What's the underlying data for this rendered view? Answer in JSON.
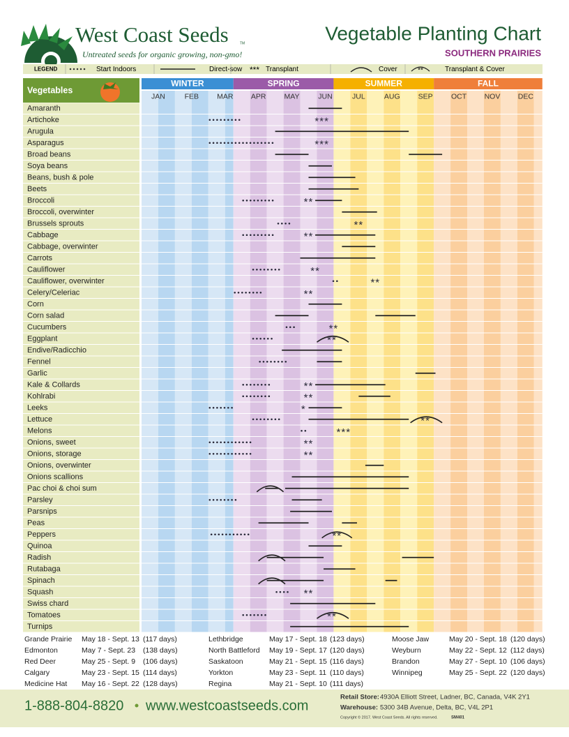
{
  "header": {
    "brand": "West Coast Seeds",
    "tm": "TM",
    "tagline": "Untreated seeds for organic growing, non-gmo!",
    "title": "Vegetable Planting Chart",
    "region": "SOUTHERN PRAIRIES"
  },
  "legend": {
    "title": "LEGEND",
    "items": [
      {
        "label": "Start Indoors"
      },
      {
        "label": "Direct-sow"
      },
      {
        "symbol": "***",
        "label": "Transplant"
      },
      {
        "label": "Cover"
      },
      {
        "symbol": "**",
        "label": "Transplant & Cover"
      }
    ]
  },
  "column_header": "Vegetables",
  "seasons": [
    {
      "name": "WINTER",
      "from": 0,
      "to": 2.75
    },
    {
      "name": "SPRING",
      "from": 2.75,
      "to": 5.75
    },
    {
      "name": "SUMMER",
      "from": 5.75,
      "to": 8.75
    },
    {
      "name": "FALL",
      "from": 8.75,
      "to": 12
    }
  ],
  "months": [
    "JAN",
    "FEB",
    "MAR",
    "APR",
    "MAY",
    "JUN",
    "JUL",
    "AUG",
    "SEP",
    "OCT",
    "NOV",
    "DEC"
  ],
  "rows": [
    {
      "name": "Amaranth",
      "sow": [
        [
          5,
          6
        ]
      ]
    },
    {
      "name": "Artichoke",
      "indoors": [
        [
          2,
          3
        ]
      ],
      "transplant": [
        {
          "at": 5.4,
          "label": "***"
        }
      ]
    },
    {
      "name": "Arugula",
      "sow": [
        [
          4,
          8
        ]
      ]
    },
    {
      "name": "Asparagus",
      "indoors": [
        [
          2,
          4
        ]
      ],
      "transplant": [
        {
          "at": 5.4,
          "label": "***"
        }
      ]
    },
    {
      "name": "Broad beans",
      "sow": [
        [
          4,
          5
        ],
        [
          8,
          9
        ]
      ]
    },
    {
      "name": "Soya beans",
      "sow": [
        [
          5,
          5.7
        ]
      ]
    },
    {
      "name": "Beans, bush & pole",
      "sow": [
        [
          5,
          6.4
        ]
      ]
    },
    {
      "name": "Beets",
      "sow": [
        [
          5,
          6.5
        ]
      ]
    },
    {
      "name": "Broccoli",
      "indoors": [
        [
          3,
          4
        ]
      ],
      "transplant": [
        {
          "at": 5,
          "label": "**"
        }
      ],
      "sow": [
        [
          5.2,
          6
        ]
      ]
    },
    {
      "name": "Broccoli, overwinter",
      "sow": [
        [
          6,
          7.05
        ]
      ]
    },
    {
      "name": "Brussels sprouts",
      "indoors": [
        [
          4.05,
          4.5
        ]
      ],
      "transplant": [
        {
          "at": 6.5,
          "label": "**"
        }
      ]
    },
    {
      "name": "Cabbage",
      "indoors": [
        [
          3,
          4
        ]
      ],
      "transplant": [
        {
          "at": 5,
          "label": "**"
        }
      ],
      "sow": [
        [
          5.2,
          7
        ]
      ]
    },
    {
      "name": "Cabbage, overwinter",
      "sow": [
        [
          6,
          7
        ]
      ]
    },
    {
      "name": "Carrots",
      "sow": [
        [
          4.75,
          7
        ]
      ]
    },
    {
      "name": "Cauliflower",
      "indoors": [
        [
          3.3,
          4.2
        ]
      ],
      "transplant": [
        {
          "at": 5.2,
          "label": "**"
        }
      ]
    },
    {
      "name": "Cauliflower, overwinter",
      "indoors": [
        [
          5.7,
          6
        ]
      ],
      "transplant": [
        {
          "at": 7,
          "label": "**"
        }
      ]
    },
    {
      "name": "Celery/Celeriac",
      "indoors": [
        [
          2.75,
          3.65
        ]
      ],
      "transplant": [
        {
          "at": 5,
          "label": "**"
        }
      ]
    },
    {
      "name": "Corn",
      "sow": [
        [
          5,
          6
        ]
      ]
    },
    {
      "name": "Corn salad",
      "sow": [
        [
          4,
          5
        ],
        [
          7,
          8.2
        ]
      ]
    },
    {
      "name": "Cucumbers",
      "indoors": [
        [
          4.3,
          4.65
        ]
      ],
      "transplant": [
        {
          "at": 5.75,
          "label": "**"
        }
      ]
    },
    {
      "name": "Eggplant",
      "indoors": [
        [
          3.3,
          4
        ]
      ],
      "cover": [
        [
          5.25,
          6.2
        ]
      ],
      "transplant": [
        {
          "at": 5.7,
          "label": "**"
        }
      ]
    },
    {
      "name": "Endive/Radicchio",
      "sow": [
        [
          4.2,
          6
        ]
      ]
    },
    {
      "name": "Fennel",
      "indoors": [
        [
          3.5,
          4.45
        ]
      ],
      "sow": [
        [
          5.25,
          6
        ]
      ]
    },
    {
      "name": "Garlic",
      "sow": [
        [
          8.2,
          8.8
        ]
      ]
    },
    {
      "name": "Kale & Collards",
      "indoors": [
        [
          3,
          3.9
        ]
      ],
      "transplant": [
        {
          "at": 5,
          "label": "**"
        }
      ],
      "sow": [
        [
          5.2,
          7.3
        ]
      ]
    },
    {
      "name": "Kohlrabi",
      "indoors": [
        [
          3,
          3.9
        ]
      ],
      "transplant": [
        {
          "at": 5,
          "label": "**"
        }
      ],
      "sow": [
        [
          6.5,
          7.45
        ]
      ]
    },
    {
      "name": "Leeks",
      "indoors": [
        [
          2,
          2.85
        ]
      ],
      "transplant": [
        {
          "at": 4.85,
          "label": "*"
        }
      ],
      "sow": [
        [
          5,
          6
        ]
      ]
    },
    {
      "name": "Lettuce",
      "indoors": [
        [
          3.3,
          4.2
        ]
      ],
      "sow": [
        [
          5,
          8
        ]
      ],
      "cover": [
        [
          8.05,
          9
        ]
      ],
      "transplant": [
        {
          "at": 8.5,
          "label": "**"
        }
      ]
    },
    {
      "name": "Melons",
      "indoors": [
        [
          4.75,
          4.95
        ]
      ],
      "transplant": [
        {
          "at": 6.05,
          "label": "***"
        }
      ]
    },
    {
      "name": "Onions, sweet",
      "indoors": [
        [
          2,
          3.4
        ]
      ],
      "transplant": [
        {
          "at": 5,
          "label": "**"
        }
      ]
    },
    {
      "name": "Onions, storage",
      "indoors": [
        [
          2,
          3.4
        ]
      ],
      "transplant": [
        {
          "at": 5,
          "label": "**"
        }
      ]
    },
    {
      "name": "Onions, overwinter",
      "sow": [
        [
          6.7,
          7.25
        ]
      ]
    },
    {
      "name": "Onions scallions",
      "sow": [
        [
          4.5,
          8
        ]
      ]
    },
    {
      "name": "Pac choi & choi sum",
      "cover": [
        [
          3.45,
          4.25
        ]
      ],
      "sow": [
        [
          3.7,
          4.1
        ],
        [
          4.3,
          8
        ]
      ]
    },
    {
      "name": "Parsley",
      "indoors": [
        [
          2,
          2.9
        ]
      ],
      "sow": [
        [
          4.5,
          5.4
        ]
      ]
    },
    {
      "name": "Parsnips",
      "sow": [
        [
          4.45,
          5.7
        ]
      ]
    },
    {
      "name": "Peas",
      "sow": [
        [
          3.5,
          5
        ],
        [
          6,
          6.45
        ]
      ]
    },
    {
      "name": "Peppers",
      "indoors": [
        [
          2.05,
          3.3
        ]
      ],
      "cover": [
        [
          5.4,
          6.3
        ]
      ],
      "transplant": [
        {
          "at": 5.85,
          "label": "**"
        }
      ]
    },
    {
      "name": "Quinoa",
      "sow": [
        [
          5,
          6
        ]
      ]
    },
    {
      "name": "Radish",
      "cover": [
        [
          3.5,
          4.3
        ]
      ],
      "sow": [
        [
          3.75,
          5.45
        ],
        [
          7.8,
          8.75
        ]
      ]
    },
    {
      "name": "Rutabaga",
      "sow": [
        [
          5.45,
          6.4
        ]
      ]
    },
    {
      "name": "Spinach",
      "cover": [
        [
          3.5,
          4.3
        ]
      ],
      "sow": [
        [
          3.75,
          5.45
        ],
        [
          7.3,
          7.65
        ]
      ]
    },
    {
      "name": "Squash",
      "indoors": [
        [
          4,
          4.5
        ]
      ],
      "transplant": [
        {
          "at": 5,
          "label": "**"
        }
      ]
    },
    {
      "name": "Swiss chard",
      "sow": [
        [
          4.45,
          7
        ]
      ]
    },
    {
      "name": "Tomatoes",
      "indoors": [
        [
          3,
          3.75
        ]
      ],
      "cover": [
        [
          5.25,
          6.2
        ]
      ],
      "transplant": [
        {
          "at": 5.7,
          "label": "**"
        }
      ]
    },
    {
      "name": "Turnips",
      "sow": [
        [
          4.45,
          8
        ]
      ]
    }
  ],
  "frost_dates": [
    [
      [
        "Grande Prairie",
        "May 18 - Sept. 13",
        "(117 days)"
      ],
      [
        "Edmonton",
        "May 7 - Sept. 23",
        "(138 days)"
      ],
      [
        "Red Deer",
        "May 25 - Sept. 9",
        "(106 days)"
      ],
      [
        "Calgary",
        "May 23 - Sept. 15",
        "(114 days)"
      ],
      [
        "Medicine Hat",
        "May 16 - Sept. 22",
        "(128 days)"
      ]
    ],
    [
      [
        "Lethbridge",
        "May 17 - Sept. 18",
        "(123 days)"
      ],
      [
        "North Battleford",
        "May 19 - Sept. 17",
        "(120 days)"
      ],
      [
        "Saskatoon",
        "May 21 - Sept. 15",
        "(116 days)"
      ],
      [
        "Yorkton",
        "May 23 - Sept. 11",
        "(110 days)"
      ],
      [
        "Regina",
        "May 21 - Sept. 10",
        "(111 days)"
      ]
    ],
    [
      [
        "Moose Jaw",
        "May 20 - Sept. 18",
        "(120 days)"
      ],
      [
        "Weyburn",
        "May 22 - Sept. 12",
        "(112 days)"
      ],
      [
        "Brandon",
        "May 27 - Sept. 10",
        "(106 days)"
      ],
      [
        "Winnipeg",
        "May 25 - Sept. 22",
        "(120 days)"
      ]
    ]
  ],
  "footer": {
    "phone": "1-888-804-8820",
    "website": "www.westcoastseeds.com",
    "retail_label": "Retail Store:",
    "retail": "4930A Elliott Street, Ladner, BC, Canada, V4K 2Y1",
    "warehouse_label": "Warehouse:",
    "warehouse": "5300 34B Avenue, Delta, BC, V4L 2P1",
    "copyright": "Copyright © 2017. West Coast Seeds. All rights reserved.",
    "code": "SM401"
  }
}
